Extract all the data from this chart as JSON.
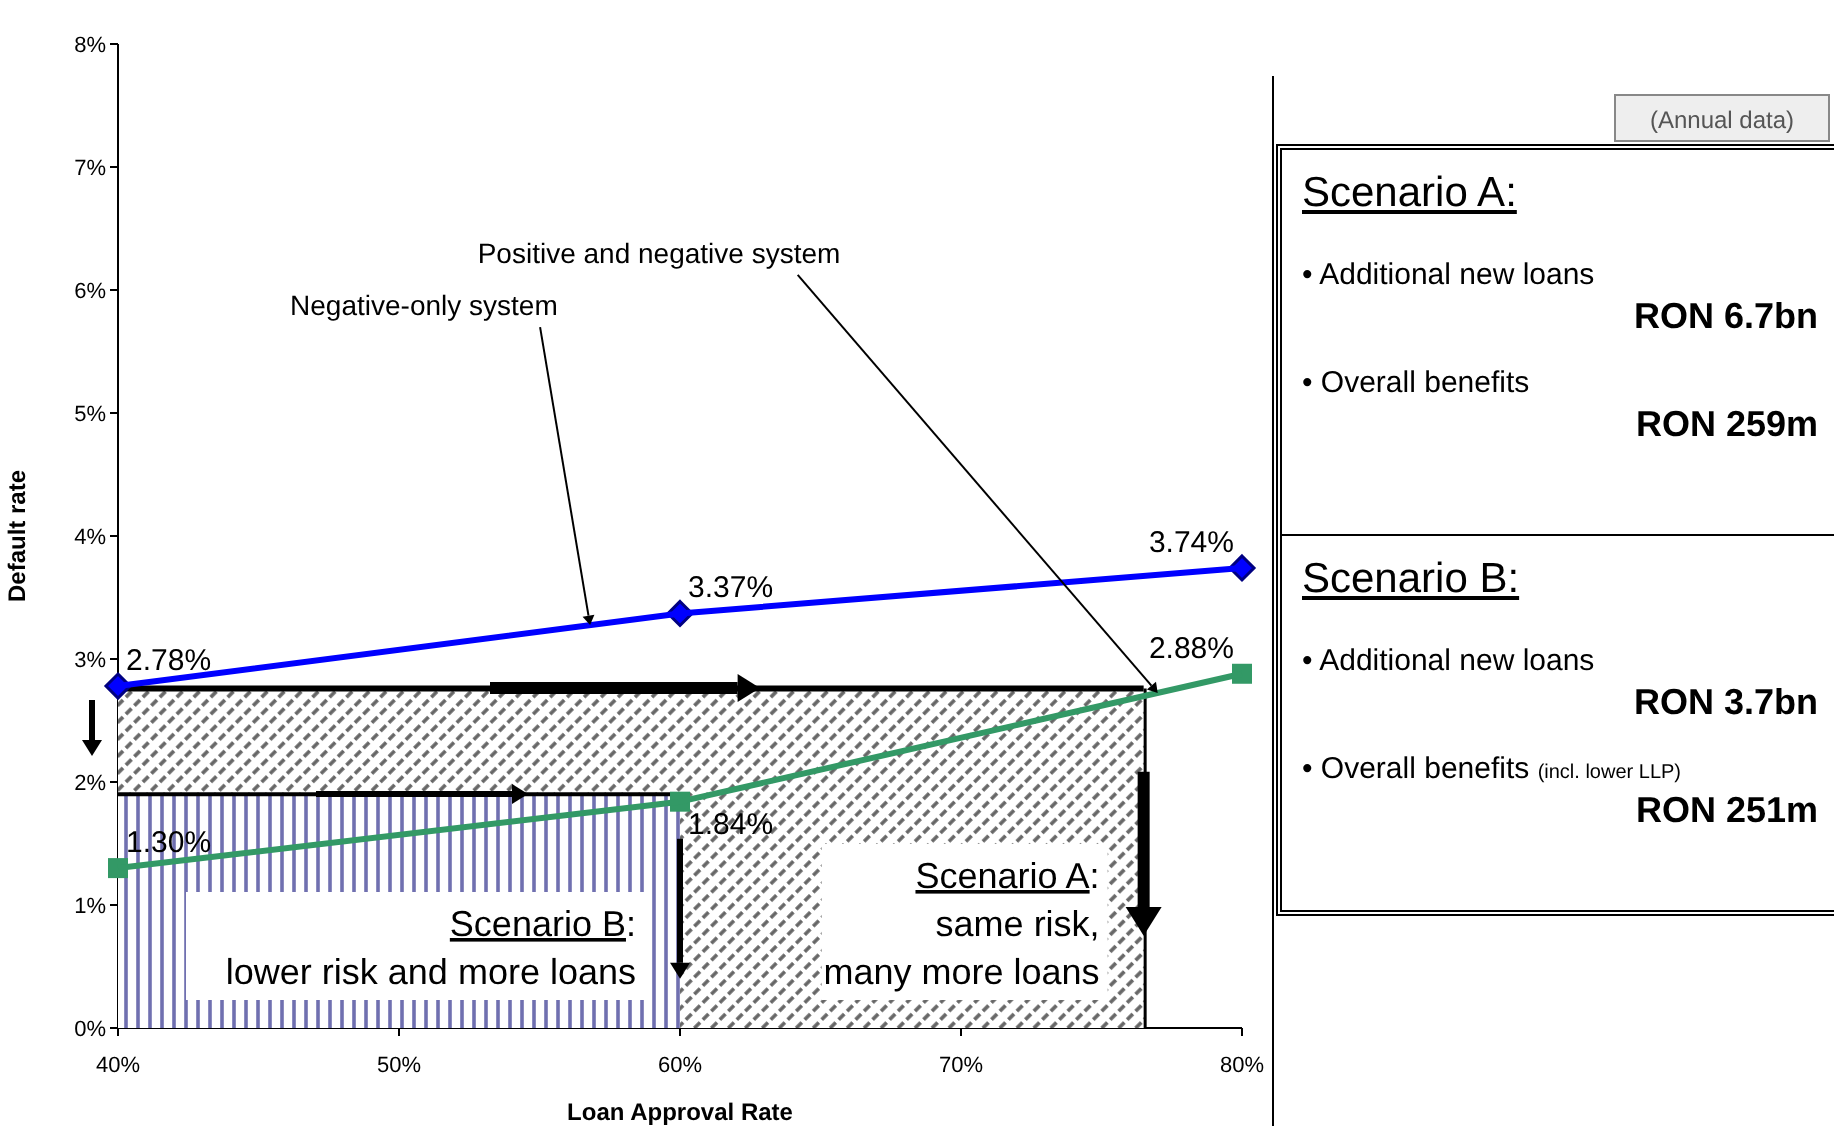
{
  "chart_data": {
    "type": "line",
    "xlabel": "Loan Approval Rate",
    "ylabel": "Default rate",
    "x": [
      40,
      60,
      80
    ],
    "series": [
      {
        "type": "area",
        "color": "#666666",
        "x": [
          40,
          76.5
        ],
        "values": [
          2.76,
          2.76
        ]
      },
      {
        "type": "area",
        "color": "#7070b0",
        "x": [
          40,
          60
        ],
        "values": [
          1.9,
          1.9
        ]
      },
      {
        "name": "Negative-only system",
        "color": "#0000ff",
        "marker": "diamond",
        "values": [
          2.78,
          3.37,
          3.74
        ],
        "value_labels": [
          "2.78%",
          "3.37%",
          "3.74%"
        ]
      },
      {
        "name": "Positive and negative system",
        "color": "#339966",
        "marker": "square",
        "values": [
          1.3,
          1.84,
          2.88
        ],
        "value_labels": [
          "1.30%",
          "1.84%",
          "2.88%"
        ]
      }
    ],
    "xlim": [
      40,
      80
    ],
    "xticks": [
      {
        "value": 40,
        "label": "40%"
      },
      {
        "value": 50,
        "label": "50%"
      },
      {
        "value": 60,
        "label": "60%"
      },
      {
        "value": 70,
        "label": "70%"
      },
      {
        "value": 80,
        "label": "80%"
      }
    ],
    "ylim": [
      0,
      8
    ],
    "yticks": [
      {
        "value": 0,
        "label": "0%"
      },
      {
        "value": 1,
        "label": "1%"
      },
      {
        "value": 2,
        "label": "2%"
      },
      {
        "value": 3,
        "label": "3%"
      },
      {
        "value": 4,
        "label": "4%"
      },
      {
        "value": 5,
        "label": "5%"
      },
      {
        "value": 6,
        "label": "6%"
      },
      {
        "value": 7,
        "label": "7%"
      },
      {
        "value": 8,
        "label": "8%"
      }
    ],
    "grid": false,
    "legend": false,
    "annotations": [
      {
        "text": "Scenario A:\nsame risk,\nmany more loans",
        "x": 76.5,
        "y": 0.75
      },
      {
        "text": "Scenario B:\nlower risk and more loans",
        "x": 60,
        "y": 0.4
      },
      "(Annual data)",
      "Scenario A:",
      "• Additional new loans",
      "RON 6.7bn",
      "• Overall benefits",
      "RON 259m",
      "Scenario B:",
      "• Additional new loans",
      "RON 3.7bn",
      "• Overall benefits (incl. lower LLP)",
      "RON 251m"
    ]
  }
}
